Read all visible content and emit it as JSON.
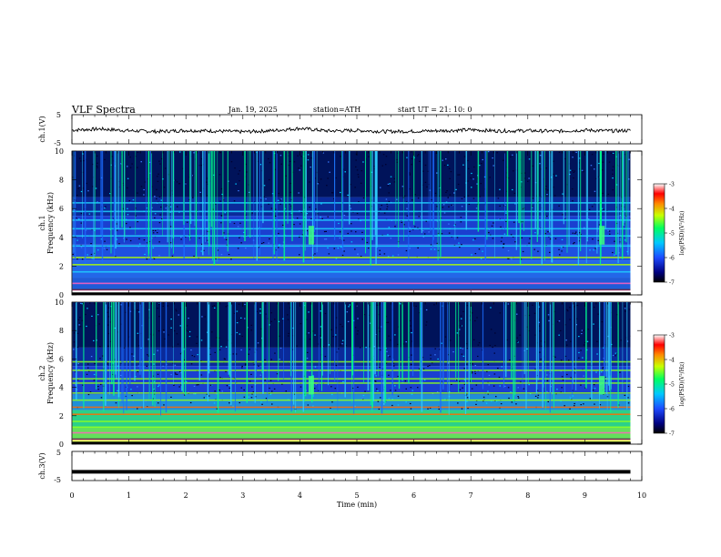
{
  "header": {
    "title": "VLF  Spectra",
    "date": "Jan. 19, 2025",
    "station": "station=ATH",
    "start": "start  UT  =   21: 10: 0"
  },
  "colorbar": {
    "label": "log(PSD)(V²/Hz)",
    "ticks": [
      "-3",
      "-4",
      "-5",
      "-6",
      "-7"
    ],
    "stops": [
      "#000000",
      "#0000a0",
      "#1e4bff",
      "#00c0ff",
      "#00ff60",
      "#c8ff00",
      "#ff8800",
      "#ff0000",
      "#ffffff"
    ]
  },
  "chart_data": [
    {
      "type": "line",
      "ylabel": "ch.1(V)",
      "ylim": [
        -5,
        5
      ],
      "ytick_labels": [
        "5",
        "-5"
      ],
      "xlim": [
        0,
        10
      ],
      "x_note": "noisy trace, approx -0.5 V mean, spikes at ~4 and ~7 min",
      "x": [
        0,
        0.5,
        1,
        1.5,
        2,
        2.5,
        3,
        3.5,
        4,
        4.5,
        5,
        5.5,
        6,
        6.5,
        7,
        7.5,
        8,
        8.5,
        9,
        9.5,
        9.8
      ],
      "y": [
        -0.3,
        0.1,
        -0.5,
        -0.8,
        -0.4,
        -0.6,
        -0.9,
        -0.5,
        0.3,
        -0.6,
        -0.4,
        -0.8,
        -0.7,
        -0.5,
        -0.2,
        -0.6,
        -0.5,
        -0.7,
        -0.3,
        -0.6,
        -0.4
      ]
    },
    {
      "type": "heatmap",
      "ylabel": "ch.1\nFrequency (kHz)",
      "ylim": [
        0,
        10
      ],
      "ytick_labels": [
        "0",
        "2",
        "4",
        "6",
        "8",
        "10"
      ],
      "xlim": [
        0,
        10
      ],
      "zlabel": "log(PSD)(V²/Hz)",
      "zlim": [
        -7,
        -3
      ],
      "x_end": 9.8,
      "lines_kHz": [
        0.3,
        0.8,
        1.6,
        2.1,
        2.6,
        3.4,
        4.1,
        4.6,
        5.2,
        5.8,
        6.4
      ],
      "burst_events": [
        {
          "t": 4.2,
          "f_lo": 3.5,
          "f_hi": 4.8
        },
        {
          "t": 9.3,
          "f_lo": 3.5,
          "f_hi": 4.8
        }
      ]
    },
    {
      "type": "heatmap",
      "ylabel": "ch.2\nFrequency (kHz)",
      "ylim": [
        0,
        10
      ],
      "ytick_labels": [
        "0",
        "2",
        "4",
        "6",
        "8",
        "10"
      ],
      "xlim": [
        0,
        10
      ],
      "zlabel": "log(PSD)(V²/Hz)",
      "zlim": [
        -7,
        -3
      ],
      "x_end": 9.8,
      "lines_kHz": [
        0.3,
        0.8,
        1.2,
        1.6,
        2.1,
        2.6,
        3.1,
        3.6,
        4.3,
        4.6,
        5.2,
        5.8
      ],
      "burst_events": [
        {
          "t": 4.2,
          "f_lo": 3.5,
          "f_hi": 4.8
        },
        {
          "t": 9.3,
          "f_lo": 3.5,
          "f_hi": 4.8
        }
      ]
    },
    {
      "type": "line",
      "ylabel": "ch.3(V)",
      "ylim": [
        -5,
        5
      ],
      "ytick_labels": [
        "5",
        "-5"
      ],
      "xlim": [
        0,
        10
      ],
      "x": [
        0,
        9.8
      ],
      "y": [
        -2,
        -2
      ]
    }
  ],
  "xaxis": {
    "label": "Time  (min)",
    "ticks": [
      "0",
      "1",
      "2",
      "3",
      "4",
      "5",
      "6",
      "7",
      "8",
      "9",
      "10"
    ]
  }
}
